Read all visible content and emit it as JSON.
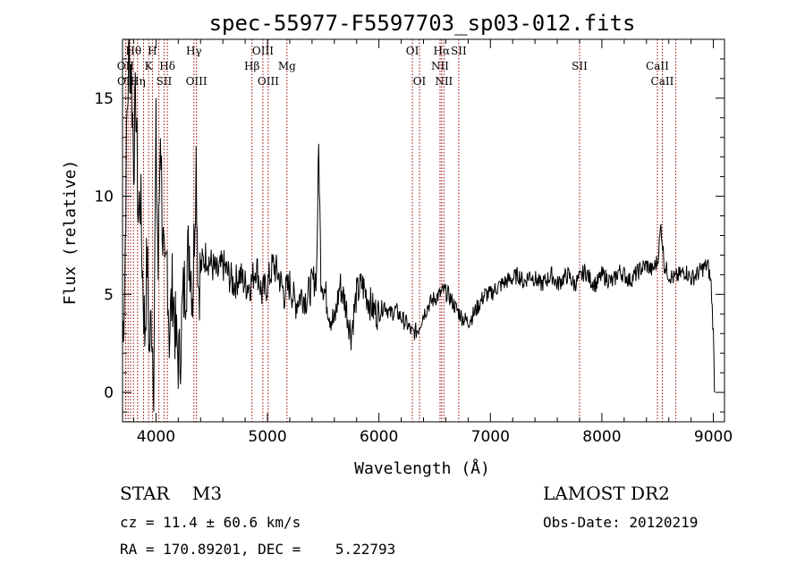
{
  "chart_data": {
    "type": "line",
    "title": "spec-55977-F5597703_sp03-012.fits",
    "xlabel": "Wavelength (Å)",
    "ylabel": "Flux (relative)",
    "xlim": [
      3700,
      9100
    ],
    "ylim": [
      -1.5,
      18
    ],
    "xticks": [
      4000,
      5000,
      6000,
      7000,
      8000,
      9000
    ],
    "yticks": [
      0,
      5,
      10,
      15
    ],
    "grid": false,
    "line_color": "#000000",
    "marker_color": "#990000",
    "series": [
      {
        "x": [
          3700,
          3720,
          3740,
          3760,
          3780,
          3800,
          3820,
          3840,
          3860,
          3880,
          3900,
          3920,
          3940,
          3960,
          3980,
          4000,
          4020,
          4040,
          4060,
          4080,
          4100,
          4120,
          4150,
          4180,
          4210,
          4240,
          4270,
          4300,
          4330,
          4360,
          4380,
          4410,
          4450,
          4500,
          4550,
          4600,
          4650,
          4700,
          4750,
          4800,
          4850,
          4900,
          4950,
          5000,
          5050,
          5100,
          5150,
          5200,
          5250,
          5300,
          5350,
          5400,
          5440,
          5460,
          5480,
          5520,
          5560,
          5600,
          5650,
          5700,
          5750,
          5800,
          5850,
          5900,
          5950,
          6000,
          6050,
          6100,
          6150,
          6200,
          6250,
          6300,
          6350,
          6400,
          6450,
          6500,
          6550,
          6580,
          6620,
          6660,
          6700,
          6750,
          6800,
          6850,
          6900,
          6950,
          7000,
          7050,
          7100,
          7150,
          7200,
          7250,
          7300,
          7350,
          7400,
          7450,
          7500,
          7550,
          7600,
          7650,
          7700,
          7750,
          7800,
          7850,
          7900,
          7950,
          8000,
          8050,
          8100,
          8150,
          8200,
          8250,
          8300,
          8350,
          8400,
          8450,
          8500,
          8530,
          8560,
          8600,
          8650,
          8700,
          8750,
          8800,
          8850,
          8900,
          8950,
          8980,
          9000,
          9010
        ],
        "y": [
          2.5,
          6.0,
          14.0,
          17.5,
          16.0,
          12.0,
          15.0,
          9.0,
          10.0,
          6.0,
          3.0,
          7.0,
          2.0,
          4.0,
          1.0,
          13.0,
          6.0,
          14.0,
          8.0,
          5.0,
          7.0,
          3.0,
          5.5,
          2.5,
          1.5,
          4.5,
          6.0,
          7.5,
          5.0,
          12.0,
          5.5,
          6.5,
          7.0,
          6.5,
          6.0,
          6.5,
          6.0,
          5.5,
          6.0,
          5.5,
          5.5,
          6.5,
          5.0,
          5.5,
          6.5,
          6.0,
          5.0,
          5.5,
          4.5,
          5.0,
          4.8,
          5.5,
          6.0,
          12.5,
          6.0,
          5.0,
          4.0,
          3.5,
          5.5,
          4.5,
          3.0,
          5.0,
          5.5,
          4.8,
          4.2,
          4.0,
          4.5,
          4.0,
          4.2,
          3.8,
          3.5,
          3.0,
          3.2,
          4.0,
          4.5,
          4.8,
          5.0,
          5.2,
          5.0,
          4.6,
          4.2,
          3.8,
          3.6,
          4.0,
          4.5,
          5.0,
          5.0,
          5.3,
          5.5,
          5.7,
          5.8,
          6.0,
          5.6,
          6.0,
          5.8,
          5.5,
          5.7,
          6.0,
          5.5,
          5.8,
          6.0,
          5.5,
          5.8,
          6.2,
          5.7,
          5.5,
          6.0,
          5.8,
          5.6,
          6.2,
          6.0,
          5.7,
          6.0,
          6.3,
          6.5,
          6.2,
          6.7,
          8.5,
          6.5,
          6.0,
          5.8,
          6.0,
          6.2,
          5.8,
          6.0,
          6.3,
          6.5,
          5.5,
          3.0,
          0.0
        ]
      }
    ],
    "lines_upper": [
      {
        "label": "Hθ",
        "x": 3798
      },
      {
        "label": "H",
        "x": 3968
      },
      {
        "label": "Hγ",
        "x": 4340
      },
      {
        "label": "OIII",
        "x": 4959
      },
      {
        "label": "OI",
        "x": 6300
      },
      {
        "label": "Hα",
        "x": 6563
      },
      {
        "label": "SII",
        "x": 6716
      }
    ],
    "lines_mid": [
      {
        "label": "OII",
        "x": 3727
      },
      {
        "label": "K",
        "x": 3934
      },
      {
        "label": "Hδ",
        "x": 4102
      },
      {
        "label": "Hβ",
        "x": 4861
      },
      {
        "label": "Mg",
        "x": 5175
      },
      {
        "label": "NII",
        "x": 6548
      },
      {
        "label": "SII",
        "x": 7800
      },
      {
        "label": "CaII",
        "x": 8498
      }
    ],
    "lines_lower": [
      {
        "label": "OII",
        "x": 3729
      },
      {
        "label": "Hη",
        "x": 3835
      },
      {
        "label": "SII",
        "x": 4072
      },
      {
        "label": "OIII",
        "x": 4363
      },
      {
        "label": "OIII",
        "x": 5007
      },
      {
        "label": "OI",
        "x": 6364
      },
      {
        "label": "NII",
        "x": 6583
      },
      {
        "label": "CaII",
        "x": 8542
      }
    ],
    "extra_marker_lines": [
      3889,
      3771,
      3750,
      4026,
      8662
    ]
  },
  "info": {
    "object_class": "STAR    M3",
    "survey": "LAMOST DR2",
    "velocity": "cz = 11.4 ± 60.6 km/s",
    "obs_date": "Obs-Date: 20120219",
    "coords": "RA = 170.89201, DEC =    5.22793"
  }
}
